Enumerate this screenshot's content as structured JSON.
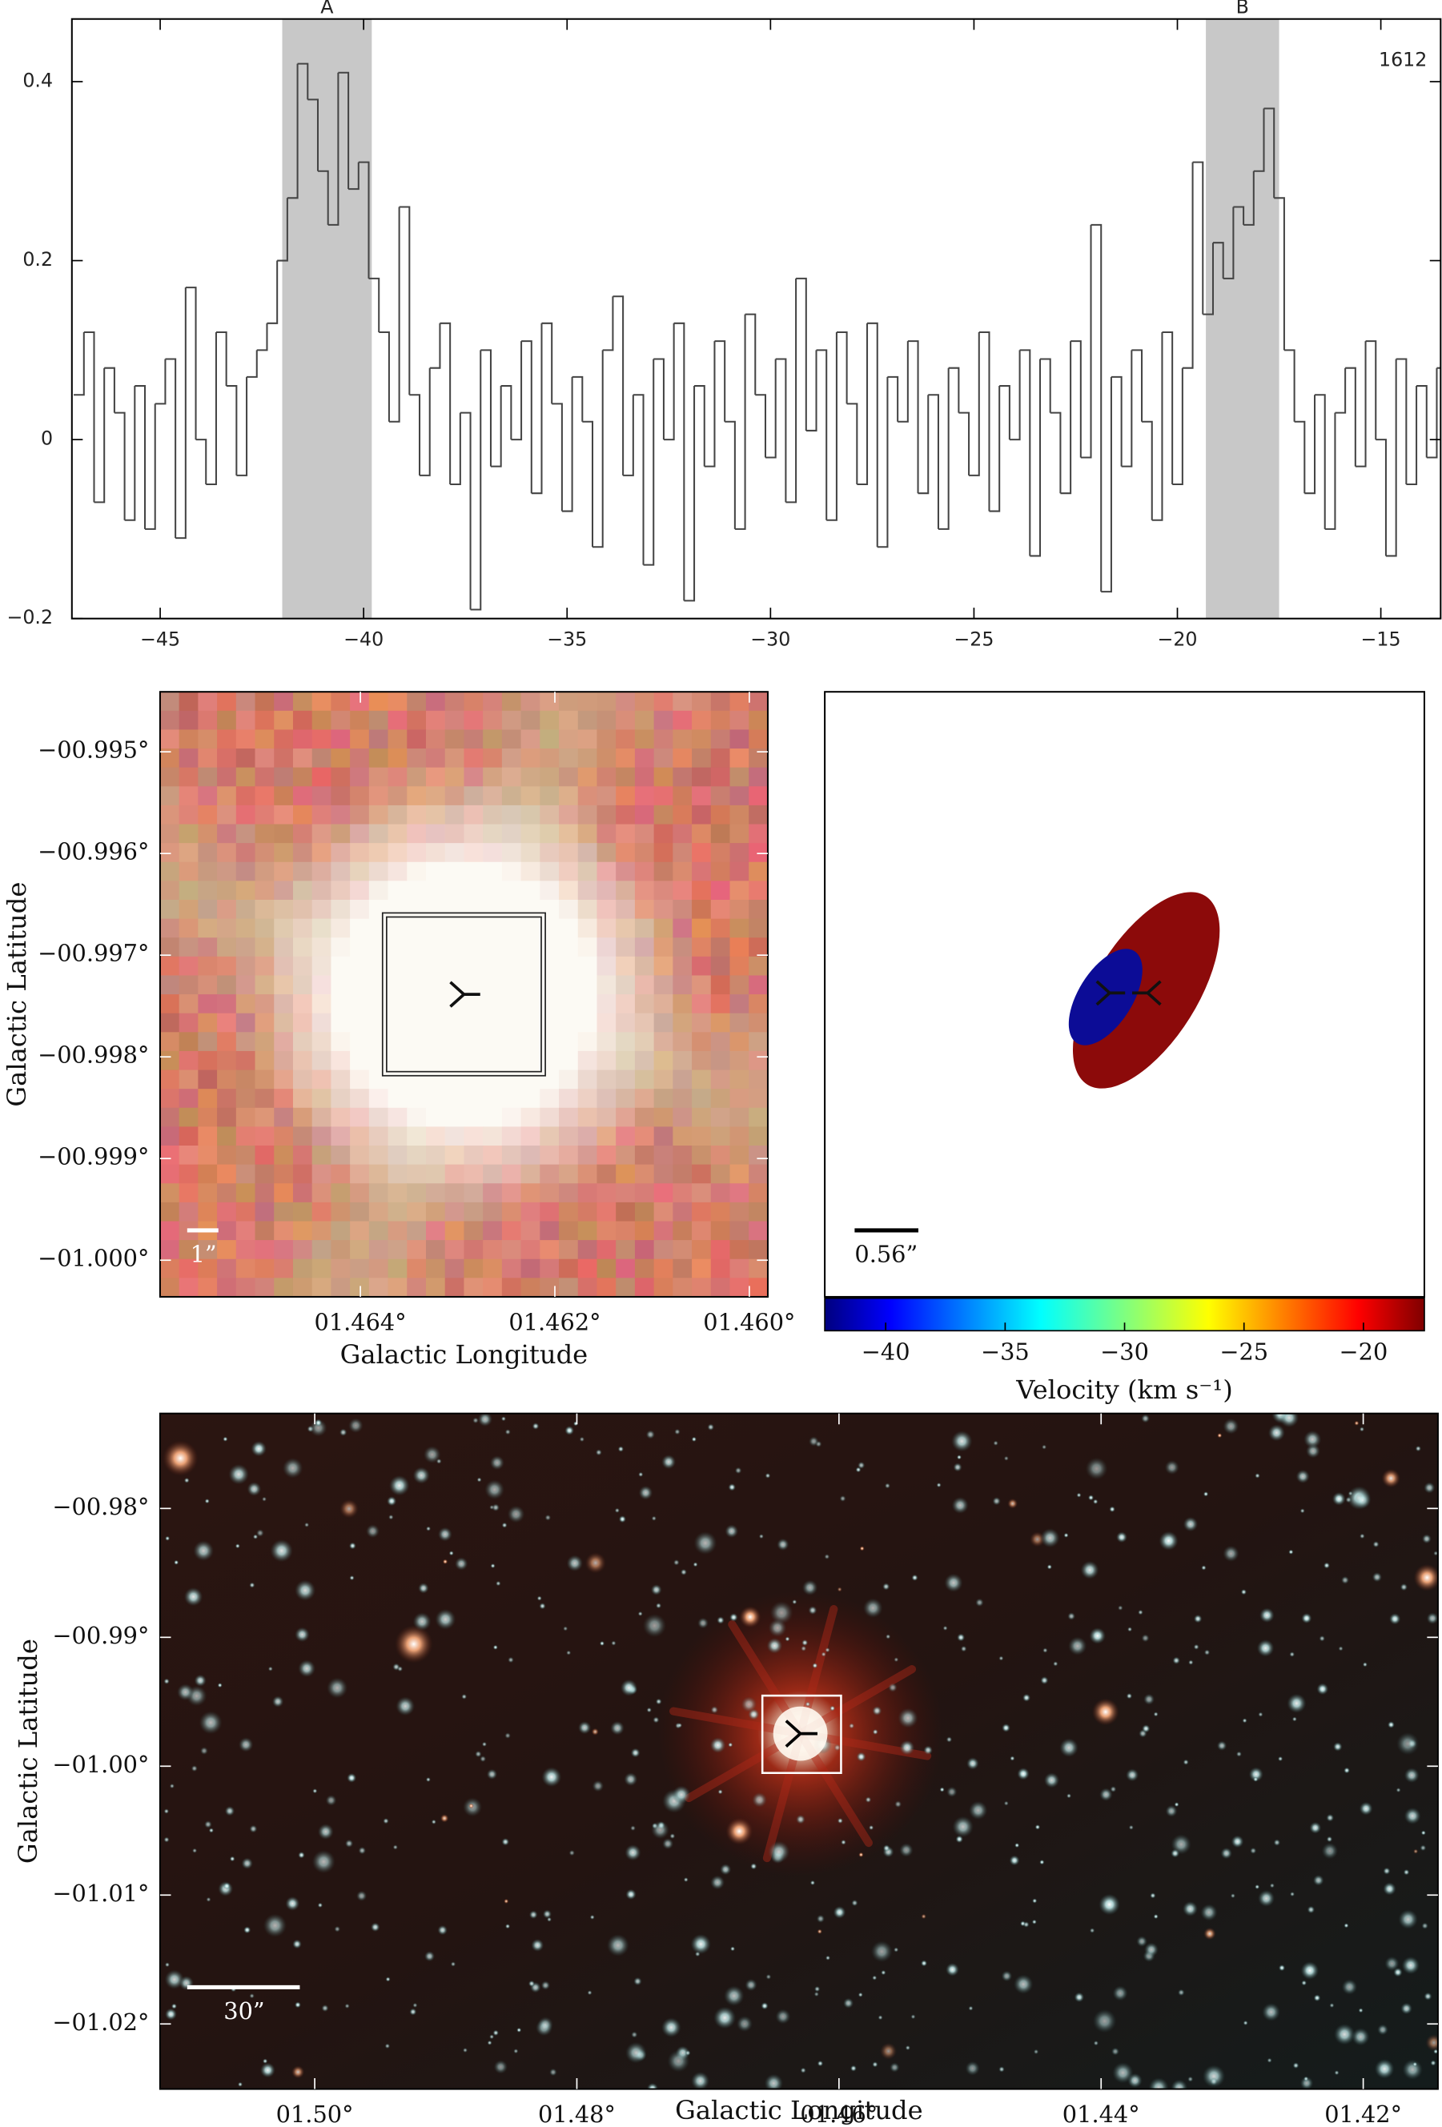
{
  "chart_data": [
    {
      "type": "line",
      "step": true,
      "annotation": "1612",
      "color": "#444444",
      "regions": [
        {
          "label": "A",
          "from": -42,
          "to": -39.8
        },
        {
          "label": "B",
          "from": -19.3,
          "to": -17.5
        }
      ],
      "region_color": "#c8c8c8",
      "x": [
        -47,
        -46.75,
        -46.5,
        -46.25,
        -46,
        -45.75,
        -45.5,
        -45.25,
        -45,
        -44.75,
        -44.5,
        -44.25,
        -44,
        -43.75,
        -43.5,
        -43.25,
        -43,
        -42.75,
        -42.5,
        -42.25,
        -42,
        -41.75,
        -41.5,
        -41.25,
        -41,
        -40.75,
        -40.5,
        -40.25,
        -40,
        -39.75,
        -39.5,
        -39.25,
        -39,
        -38.75,
        -38.5,
        -38.25,
        -38,
        -37.75,
        -37.5,
        -37.25,
        -37,
        -36.75,
        -36.5,
        -36.25,
        -36,
        -35.75,
        -35.5,
        -35.25,
        -35,
        -34.75,
        -34.5,
        -34.25,
        -34,
        -33.75,
        -33.5,
        -33.25,
        -33,
        -32.75,
        -32.5,
        -32.25,
        -32,
        -31.75,
        -31.5,
        -31.25,
        -31,
        -30.75,
        -30.5,
        -30.25,
        -30,
        -29.75,
        -29.5,
        -29.25,
        -29,
        -28.75,
        -28.5,
        -28.25,
        -28,
        -27.75,
        -27.5,
        -27.25,
        -27,
        -26.75,
        -26.5,
        -26.25,
        -26,
        -25.75,
        -25.5,
        -25.25,
        -25,
        -24.75,
        -24.5,
        -24.25,
        -24,
        -23.75,
        -23.5,
        -23.25,
        -23,
        -22.75,
        -22.5,
        -22.25,
        -22,
        -21.75,
        -21.5,
        -21.25,
        -21,
        -20.75,
        -20.5,
        -20.25,
        -20,
        -19.75,
        -19.5,
        -19.25,
        -19,
        -18.75,
        -18.5,
        -18.25,
        -18,
        -17.75,
        -17.5,
        -17.25,
        -17,
        -16.75,
        -16.5,
        -16.25,
        -16,
        -15.75,
        -15.5,
        -15.25,
        -15,
        -14.75,
        -14.5,
        -14.25,
        -14,
        -13.75,
        -13.5
      ],
      "values": [
        0.05,
        0.12,
        -0.07,
        0.08,
        0.03,
        -0.09,
        0.06,
        -0.1,
        0.04,
        0.09,
        -0.11,
        0.17,
        0.0,
        -0.05,
        0.12,
        0.06,
        -0.04,
        0.07,
        0.1,
        0.13,
        0.2,
        0.27,
        0.42,
        0.38,
        0.3,
        0.24,
        0.41,
        0.28,
        0.31,
        0.18,
        0.12,
        0.02,
        0.26,
        0.05,
        -0.04,
        0.08,
        0.13,
        -0.05,
        0.03,
        -0.19,
        0.1,
        -0.03,
        0.06,
        0.0,
        0.11,
        -0.06,
        0.13,
        0.04,
        -0.08,
        0.07,
        0.02,
        -0.12,
        0.1,
        0.16,
        -0.04,
        0.05,
        -0.14,
        0.09,
        0.0,
        0.13,
        -0.18,
        0.06,
        -0.03,
        0.11,
        0.02,
        -0.1,
        0.14,
        0.05,
        -0.02,
        0.09,
        -0.07,
        0.18,
        0.01,
        0.1,
        -0.09,
        0.12,
        0.04,
        -0.05,
        0.13,
        -0.12,
        0.07,
        0.02,
        0.11,
        -0.06,
        0.05,
        -0.1,
        0.08,
        0.03,
        -0.04,
        0.12,
        -0.08,
        0.06,
        0.0,
        0.1,
        -0.13,
        0.09,
        0.03,
        -0.06,
        0.11,
        -0.02,
        0.24,
        -0.17,
        0.07,
        -0.03,
        0.1,
        0.02,
        -0.09,
        0.12,
        -0.05,
        0.08,
        0.31,
        0.14,
        0.22,
        0.18,
        0.26,
        0.24,
        0.3,
        0.37,
        0.27,
        0.1,
        0.02,
        -0.06,
        0.05,
        -0.1,
        0.03,
        0.08,
        -0.03,
        0.11,
        0.0,
        -0.13,
        0.09,
        -0.05,
        0.06,
        -0.02,
        0.08
      ],
      "xlim": [
        -47.17,
        -13.53
      ],
      "ylim": [
        -0.2,
        0.47
      ],
      "xticks": [
        {
          "value": -45,
          "label": "−45"
        },
        {
          "value": -40,
          "label": "−40"
        },
        {
          "value": -35,
          "label": "−35"
        },
        {
          "value": -30,
          "label": "−30"
        },
        {
          "value": -25,
          "label": "−25"
        },
        {
          "value": -20,
          "label": "−20"
        },
        {
          "value": -15,
          "label": "−15"
        }
      ],
      "yticks": [
        {
          "value": -0.2,
          "label": "−0.2"
        },
        0,
        0.2,
        0.4
      ]
    },
    {
      "type": "image",
      "xlabel": "Galactic Longitude",
      "ylabel": "Galactic Latitude",
      "scalebar": "1”",
      "xlim": [
        1.46606,
        1.45981
      ],
      "ylim": [
        -1.00036,
        -0.99441
      ],
      "xticks": [
        {
          "value": 1.464,
          "label": "01.464°"
        },
        {
          "value": 1.462,
          "label": "01.462°"
        },
        {
          "value": 1.46,
          "label": "01.460°"
        }
      ],
      "yticks": [
        {
          "value": -0.995,
          "label": "−00.995°"
        },
        {
          "value": -0.996,
          "label": "−00.996°"
        },
        {
          "value": -0.997,
          "label": "−00.997°"
        },
        {
          "value": -0.998,
          "label": "−00.998°"
        },
        {
          "value": -0.999,
          "label": "−00.999°"
        },
        {
          "value": -1.0,
          "label": "−01.000°"
        }
      ]
    },
    {
      "type": "ellipse",
      "scalebar": "0.56”",
      "colorbar_label": "Velocity (km s⁻¹)",
      "clim": [
        -42.55,
        -17.45
      ],
      "cticks": [
        {
          "value": -40,
          "label": "−40"
        },
        {
          "value": -35,
          "label": "−35"
        },
        {
          "value": -30,
          "label": "−30"
        },
        {
          "value": -25,
          "label": "−25"
        },
        {
          "value": -20,
          "label": "−20"
        }
      ],
      "components": [
        {
          "velocity": -40.9,
          "color": "#0c0c96"
        },
        {
          "velocity": -18.4,
          "color": "#8c0a0a"
        }
      ]
    },
    {
      "type": "image",
      "xlabel": "Galactic Longitude",
      "ylabel": "Galactic Latitude",
      "scalebar": "30”",
      "xlim": [
        1.5118,
        1.4143
      ],
      "ylim": [
        -1.02505,
        -0.97263
      ],
      "xticks": [
        {
          "value": 1.5,
          "label": "01.50°"
        },
        {
          "value": 1.48,
          "label": "01.48°"
        },
        {
          "value": 1.46,
          "label": "01.46°"
        },
        {
          "value": 1.44,
          "label": "01.44°"
        },
        {
          "value": 1.42,
          "label": "01.42°"
        }
      ],
      "yticks": [
        {
          "value": -0.98,
          "label": "−00.98°"
        },
        {
          "value": -0.99,
          "label": "−00.99°"
        },
        {
          "value": -1.0,
          "label": "−01.00°"
        },
        {
          "value": -1.01,
          "label": "−01.01°"
        },
        {
          "value": -1.02,
          "label": "−01.02°"
        }
      ]
    }
  ]
}
